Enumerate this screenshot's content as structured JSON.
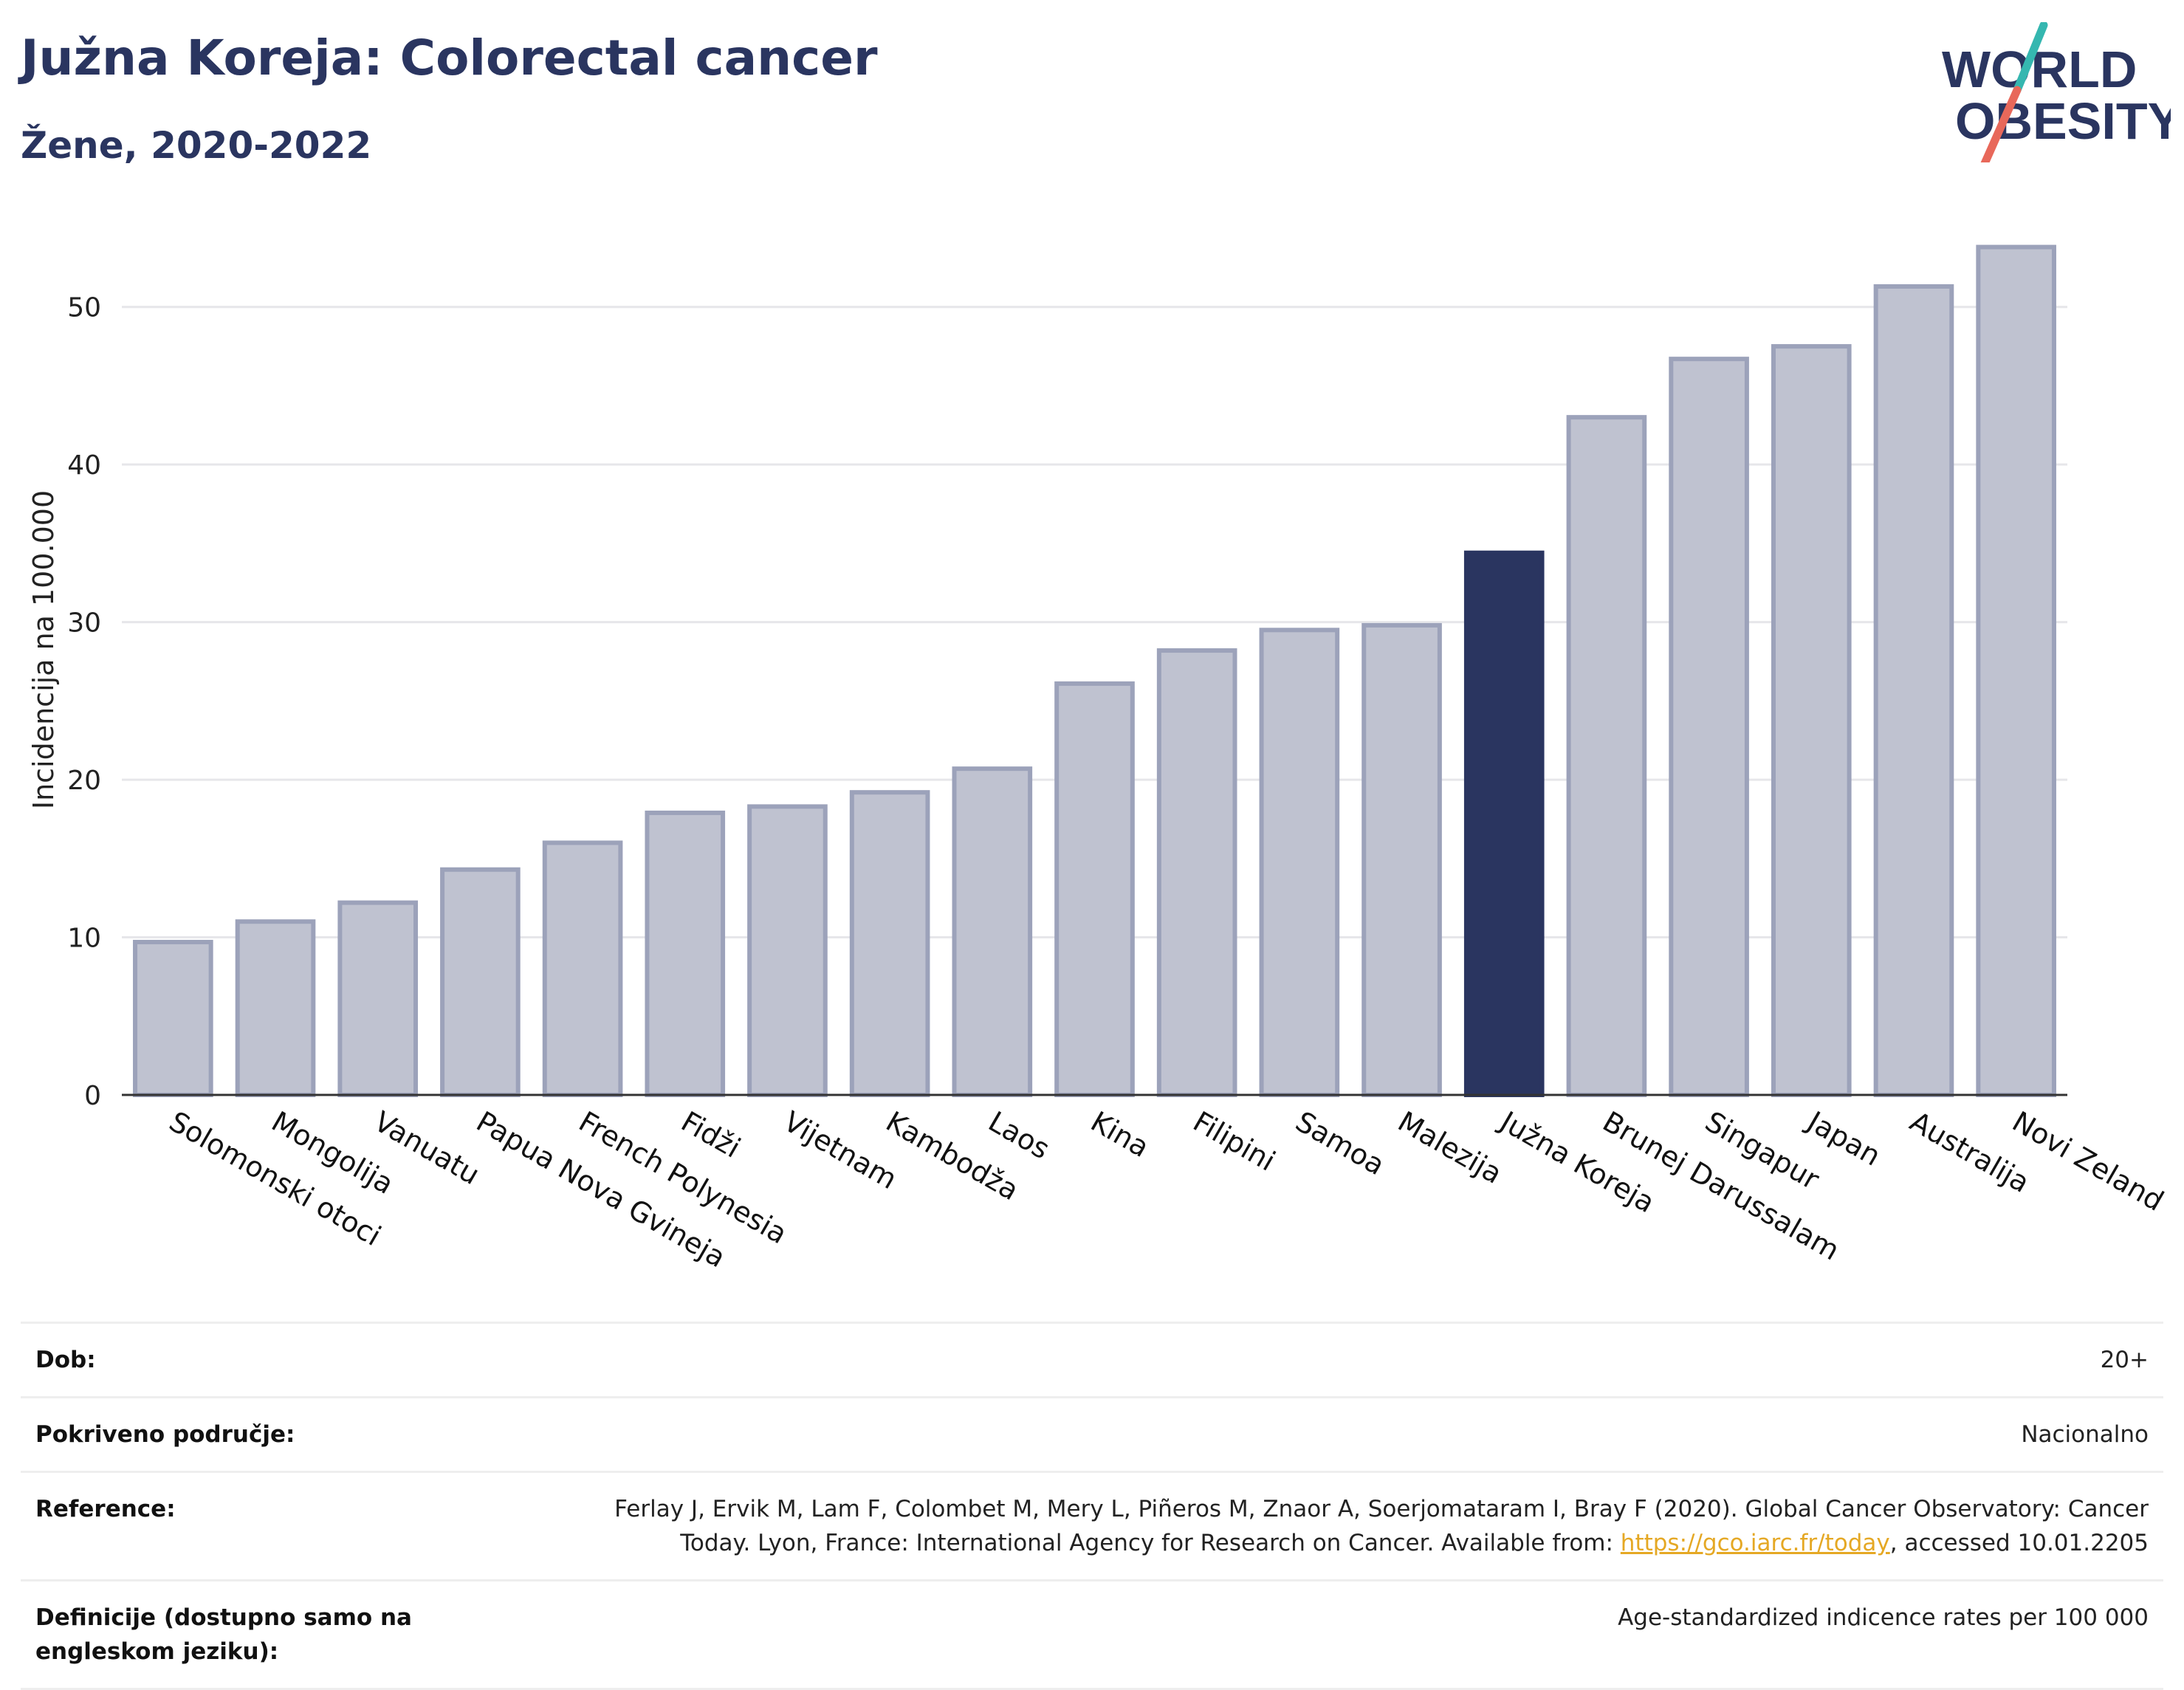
{
  "header": {
    "title": "Južna Koreja: Colorectal cancer",
    "subtitle": "Žene, 2020-2022"
  },
  "logo": {
    "line1": "WORLD",
    "line2": "OBESITY",
    "colors": {
      "text": "#2a3560",
      "slash_teal": "#35b7b0",
      "slash_red": "#e8685a"
    }
  },
  "chart_data": {
    "type": "bar",
    "title": "",
    "xlabel": "",
    "ylabel": "Incidencija na 100.000",
    "ylim": [
      0,
      55
    ],
    "yticks": [
      0,
      10,
      20,
      30,
      40,
      50
    ],
    "grid": true,
    "categories": [
      "Solomonski otoci",
      "Mongolija",
      "Vanuatu",
      "Papua Nova Gvineja",
      "French Polynesia",
      "Fidži",
      "Vijetnam",
      "Kambodža",
      "Laos",
      "Kina",
      "Filipini",
      "Samoa",
      "Malezija",
      "Južna Koreja",
      "Brunej Darussalam",
      "Singapur",
      "Japan",
      "Australija",
      "Novi Zeland"
    ],
    "values": [
      9.7,
      11.0,
      12.2,
      14.3,
      16.0,
      17.9,
      18.3,
      19.2,
      20.7,
      26.1,
      28.2,
      29.5,
      29.8,
      34.4,
      43.0,
      46.7,
      47.5,
      51.3,
      53.8
    ],
    "highlight": "Južna Koreja",
    "colors": {
      "bar": "#bfc2d0",
      "bar_edge": "#9ca2ba",
      "highlight": "#2a3560"
    }
  },
  "meta": {
    "age_label": "Dob:",
    "age_value": "20+",
    "coverage_label": "Pokriveno područje:",
    "coverage_value": "Nacionalno",
    "reference_label": "Reference:",
    "reference_text_line1": "Ferlay J, Ervik M, Lam F, Colombet M, Mery L, Piñeros M, Znaor A, Soerjomataram I, Bray F (2020). Global Cancer Observatory: Cancer",
    "reference_text_line2": "Today. Lyon, France: International Agency for Research on Cancer. Available from:",
    "reference_link": "https://gco.iarc.fr/today",
    "reference_accessed": ", accessed 10.01.2205",
    "definitions_label": "Definicije (dostupno samo na engleskom jeziku):",
    "definitions_value": "Age-standardized indicence rates per 100 000"
  }
}
